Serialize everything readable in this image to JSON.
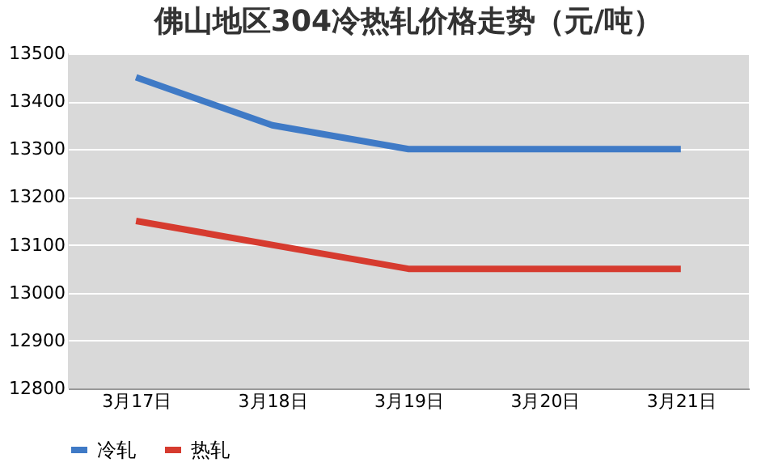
{
  "chart_data": {
    "type": "line",
    "title": "佛山地区304冷热轧价格走势（元/吨）",
    "categories": [
      "3月17日",
      "3月18日",
      "3月19日",
      "3月20日",
      "3月21日"
    ],
    "series": [
      {
        "name": "冷轧",
        "color": "#3f7ac6",
        "values": [
          13450,
          13350,
          13300,
          13300,
          13300
        ]
      },
      {
        "name": "热轧",
        "color": "#d63b2f",
        "values": [
          13150,
          13100,
          13050,
          13050,
          13050
        ]
      }
    ],
    "ylim": [
      12800,
      13500
    ],
    "yticks": [
      12800,
      12900,
      13000,
      13100,
      13200,
      13300,
      13400,
      13500
    ],
    "grid": "y",
    "legend": "bottom",
    "marker": "none",
    "line_style": "solid"
  }
}
